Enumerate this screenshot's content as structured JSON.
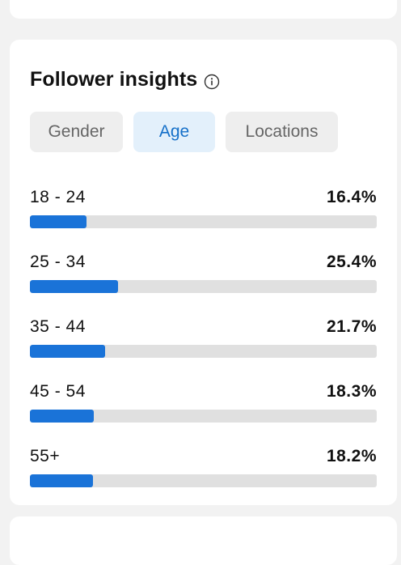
{
  "section": {
    "title": "Follower insights",
    "info_icon": "info-circle-icon"
  },
  "tabs": [
    {
      "label": "Gender",
      "active": false
    },
    {
      "label": "Age",
      "active": true
    },
    {
      "label": "Locations",
      "active": false
    }
  ],
  "age_groups": [
    {
      "label": "18 - 24",
      "value": "16.4%",
      "fraction": 0.164
    },
    {
      "label": "25 - 34",
      "value": "25.4%",
      "fraction": 0.254
    },
    {
      "label": "35 - 44",
      "value": "21.7%",
      "fraction": 0.217
    },
    {
      "label": "45 - 54",
      "value": "18.3%",
      "fraction": 0.183
    },
    {
      "label": "55+",
      "value": "18.2%",
      "fraction": 0.182
    }
  ],
  "colors": {
    "accent": "#1a73d8",
    "active_tab_bg": "#e3f0fb",
    "track": "#e0e0e0"
  }
}
